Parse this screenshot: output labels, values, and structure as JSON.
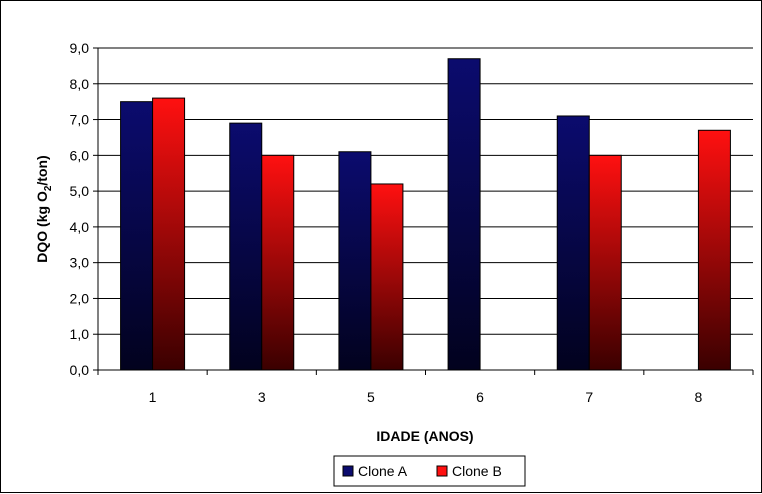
{
  "chart_data": {
    "type": "bar",
    "title": "",
    "categories": [
      "1",
      "3",
      "5",
      "6",
      "7",
      "8"
    ],
    "series": [
      {
        "name": "Clone A",
        "values": [
          7.5,
          6.9,
          6.1,
          8.7,
          7.1,
          null
        ],
        "color_top": "#0b0b6e",
        "color_bottom": "#02021e"
      },
      {
        "name": "Clone B",
        "values": [
          7.6,
          6.0,
          5.2,
          null,
          6.0,
          6.7
        ],
        "color_top": "#ff1010",
        "color_bottom": "#3a0000"
      }
    ],
    "xlabel": "IDADE (ANOS)",
    "ylabel_prefix": "DQO (kg O",
    "ylabel_sub": "2",
    "ylabel_suffix": "/ton)",
    "ylim": [
      0,
      9
    ],
    "ytick_values": [
      0,
      1,
      2,
      3,
      4,
      5,
      6,
      7,
      8,
      9
    ],
    "ytick_labels": [
      "0,0",
      "1,0",
      "2,0",
      "3,0",
      "4,0",
      "5,0",
      "6,0",
      "7,0",
      "8,0",
      "9,0"
    ],
    "grid": true,
    "legend_position": "bottom-center"
  }
}
